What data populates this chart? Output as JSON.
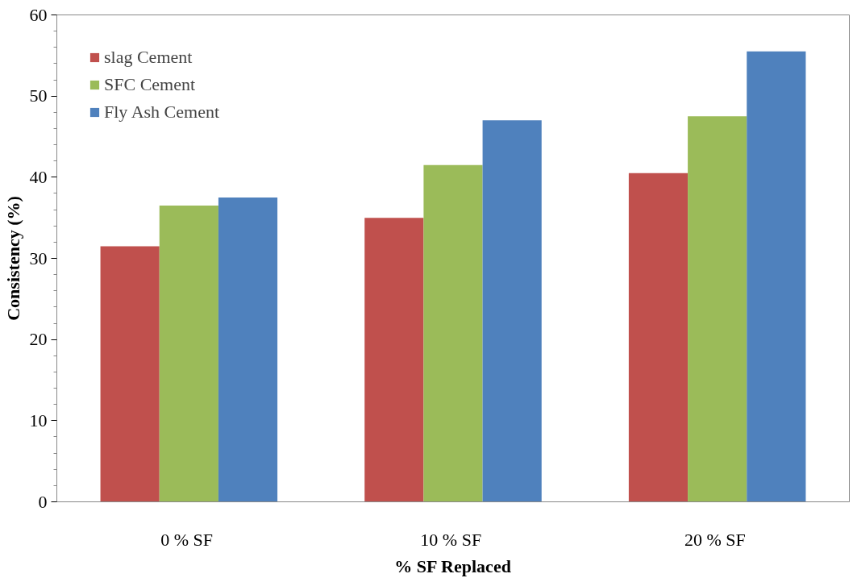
{
  "chart_data": {
    "type": "bar",
    "xlabel": "% SF Replaced",
    "ylabel": "Consistency (%)",
    "categories": [
      "0 %  SF",
      "10 %  SF",
      "20 %  SF"
    ],
    "series": [
      {
        "name": "slag Cement",
        "color": "#c0504d",
        "values": [
          31.5,
          35,
          40.5
        ]
      },
      {
        "name": "SFC Cement",
        "color": "#9bbb59",
        "values": [
          36.5,
          41.5,
          47.5
        ]
      },
      {
        "name": "Fly Ash Cement",
        "color": "#4f81bd",
        "values": [
          37.5,
          47,
          55.5
        ]
      }
    ],
    "ylim": [
      0,
      60
    ],
    "yticks": [
      0,
      {
        "value": 2,
        "label": null
      },
      {
        "value": 4,
        "label": null
      },
      {
        "value": 6,
        "label": null
      },
      {
        "value": 8,
        "label": null
      },
      10,
      {
        "value": 12,
        "label": null
      },
      {
        "value": 14,
        "label": null
      },
      {
        "value": 16,
        "label": null
      },
      {
        "value": 18,
        "label": null
      },
      20,
      {
        "value": 22,
        "label": null
      },
      {
        "value": 24,
        "label": null
      },
      {
        "value": 26,
        "label": null
      },
      {
        "value": 28,
        "label": null
      },
      30,
      {
        "value": 32,
        "label": null
      },
      {
        "value": 34,
        "label": null
      },
      {
        "value": 36,
        "label": null
      },
      {
        "value": 38,
        "label": null
      },
      40,
      {
        "value": 42,
        "label": null
      },
      {
        "value": 44,
        "label": null
      },
      {
        "value": 46,
        "label": null
      },
      {
        "value": 48,
        "label": null
      },
      50,
      {
        "value": 52,
        "label": null
      },
      {
        "value": 54,
        "label": null
      },
      {
        "value": 56,
        "label": null
      },
      {
        "value": 58,
        "label": null
      },
      60
    ],
    "grid": false,
    "legend": "top left"
  }
}
